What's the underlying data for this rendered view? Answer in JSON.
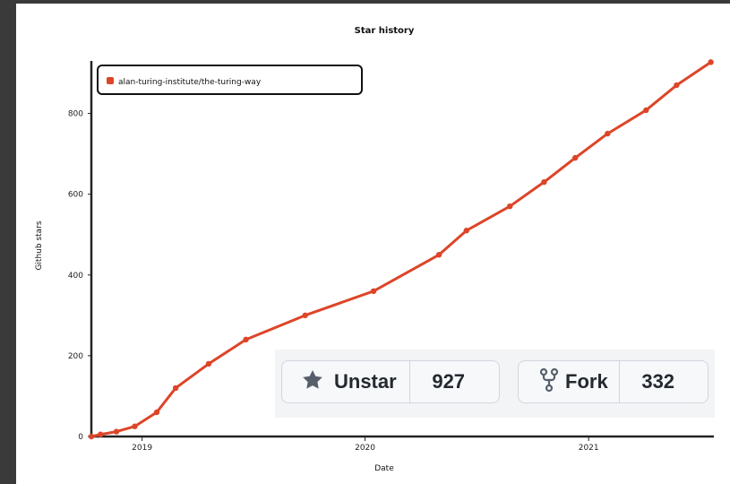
{
  "chart_data": {
    "type": "line",
    "title": "Star history",
    "xlabel": "Date",
    "ylabel": "Github stars",
    "x_ticks": [
      "2019",
      "2020",
      "2021"
    ],
    "y_ticks": [
      0,
      200,
      400,
      600,
      800
    ],
    "ylim": [
      0,
      930
    ],
    "xlim": [
      "2018-10-10",
      "2021-07-25"
    ],
    "legend": "top-left",
    "grid": false,
    "series": [
      {
        "name": "alan-turing-institute/the-turing-way",
        "color": "#dd4528",
        "points": [
          [
            "2018-10-10",
            0
          ],
          [
            "2018-10-25",
            5
          ],
          [
            "2018-11-20",
            12
          ],
          [
            "2018-12-20",
            25
          ],
          [
            "2019-01-25",
            60
          ],
          [
            "2019-02-25",
            120
          ],
          [
            "2019-04-20",
            180
          ],
          [
            "2019-06-20",
            240
          ],
          [
            "2019-09-25",
            300
          ],
          [
            "2020-01-15",
            360
          ],
          [
            "2020-05-01",
            450
          ],
          [
            "2020-06-15",
            510
          ],
          [
            "2020-08-25",
            570
          ],
          [
            "2020-10-20",
            630
          ],
          [
            "2020-12-10",
            690
          ],
          [
            "2021-02-01",
            750
          ],
          [
            "2021-04-05",
            808
          ],
          [
            "2021-05-25",
            870
          ],
          [
            "2021-07-20",
            927
          ]
        ]
      }
    ]
  },
  "buttons": {
    "star": {
      "label": "Unstar",
      "count": "927",
      "icon": "star-icon"
    },
    "fork": {
      "label": "Fork",
      "count": "332",
      "icon": "fork-icon"
    }
  }
}
